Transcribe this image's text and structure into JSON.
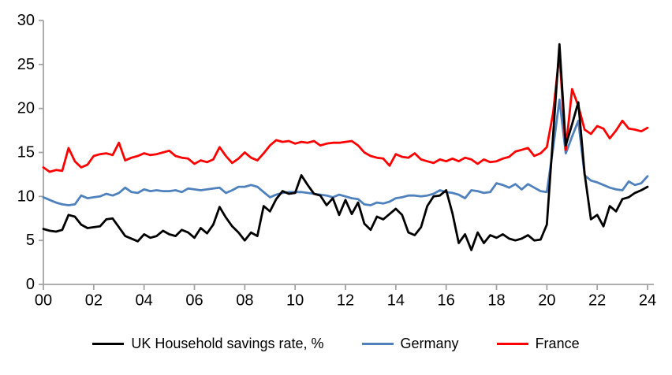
{
  "chart_data": {
    "type": "line",
    "title": "",
    "xlabel": "",
    "ylabel": "",
    "grid": false,
    "legend_position": "bottom",
    "ylim": [
      0,
      30
    ],
    "y_ticks": [
      0,
      5,
      10,
      15,
      20,
      25,
      30
    ],
    "x_axis": {
      "tick_labels": [
        "00",
        "02",
        "04",
        "06",
        "08",
        "10",
        "12",
        "14",
        "16",
        "18",
        "20",
        "22",
        "24"
      ],
      "points_per_tick": 8,
      "frequency": "quarterly"
    },
    "axis_color": "#A3A3A3",
    "tick_label_color": "#000000",
    "series": [
      {
        "name": "UK Household savings rate, %",
        "color": "#000000",
        "values": [
          6.3,
          6.1,
          6.0,
          6.2,
          7.9,
          7.7,
          6.8,
          6.4,
          6.5,
          6.6,
          7.4,
          7.5,
          6.5,
          5.5,
          5.2,
          4.9,
          5.7,
          5.3,
          5.5,
          6.1,
          5.7,
          5.5,
          6.2,
          5.9,
          5.3,
          6.4,
          5.8,
          6.8,
          8.8,
          7.6,
          6.6,
          5.9,
          5.0,
          5.9,
          5.5,
          8.9,
          8.3,
          9.7,
          10.6,
          10.3,
          10.4,
          12.4,
          11.3,
          10.3,
          10.1,
          9.0,
          9.8,
          7.9,
          9.6,
          8.0,
          9.3,
          6.9,
          6.2,
          7.7,
          7.4,
          8.0,
          8.6,
          7.9,
          5.9,
          5.6,
          6.5,
          8.9,
          10.0,
          10.1,
          10.7,
          8.1,
          4.7,
          5.7,
          3.9,
          5.9,
          4.7,
          5.6,
          5.3,
          5.7,
          5.2,
          5.0,
          5.2,
          5.6,
          5.0,
          5.1,
          6.8,
          17.0,
          27.3,
          15.8,
          18.2,
          20.7,
          12.6,
          7.4,
          7.9,
          6.6,
          8.9,
          8.3,
          9.7,
          9.9,
          10.4,
          10.7,
          11.1
        ]
      },
      {
        "name": "Germany",
        "color": "#4F81BD",
        "values": [
          9.9,
          9.6,
          9.3,
          9.1,
          9.0,
          9.1,
          10.1,
          9.8,
          9.9,
          10.0,
          10.3,
          10.1,
          10.4,
          11.0,
          10.5,
          10.4,
          10.8,
          10.6,
          10.7,
          10.6,
          10.6,
          10.7,
          10.5,
          10.9,
          10.8,
          10.7,
          10.8,
          10.9,
          11.0,
          10.4,
          10.7,
          11.1,
          11.1,
          11.3,
          11.1,
          10.5,
          9.9,
          10.2,
          10.4,
          10.5,
          10.5,
          10.5,
          10.4,
          10.3,
          10.2,
          10.1,
          9.9,
          10.2,
          10.0,
          9.8,
          9.7,
          9.1,
          9.0,
          9.3,
          9.2,
          9.4,
          9.8,
          9.9,
          10.1,
          10.1,
          10.0,
          10.1,
          10.3,
          10.7,
          10.5,
          10.4,
          10.2,
          9.8,
          10.7,
          10.6,
          10.4,
          10.5,
          11.5,
          11.3,
          11.0,
          11.4,
          10.8,
          11.4,
          11.0,
          10.6,
          10.5,
          15.5,
          21.0,
          14.9,
          16.8,
          18.6,
          12.4,
          11.8,
          11.6,
          11.3,
          11.0,
          10.8,
          10.7,
          11.7,
          11.3,
          11.5,
          12.3
        ]
      },
      {
        "name": "France",
        "color": "#FF0000",
        "values": [
          13.3,
          12.8,
          13.0,
          12.9,
          15.5,
          14.0,
          13.3,
          13.6,
          14.6,
          14.8,
          14.9,
          14.7,
          16.1,
          14.1,
          14.4,
          14.6,
          14.9,
          14.7,
          14.8,
          15.0,
          15.2,
          14.6,
          14.4,
          14.3,
          13.7,
          14.1,
          13.9,
          14.2,
          15.6,
          14.6,
          13.8,
          14.3,
          15.0,
          14.4,
          14.1,
          14.9,
          15.8,
          16.4,
          16.2,
          16.3,
          16.0,
          16.2,
          16.1,
          16.3,
          15.8,
          16.0,
          16.1,
          16.1,
          16.2,
          16.3,
          15.8,
          15.0,
          14.6,
          14.4,
          14.3,
          13.5,
          14.8,
          14.5,
          14.4,
          14.9,
          14.2,
          14.0,
          13.8,
          14.2,
          14.0,
          14.3,
          14.0,
          14.4,
          14.2,
          13.7,
          14.2,
          13.9,
          14.0,
          14.3,
          14.5,
          15.1,
          15.3,
          15.5,
          14.6,
          14.9,
          15.6,
          19.5,
          26.2,
          15.3,
          22.2,
          20.3,
          17.6,
          17.1,
          18.0,
          17.7,
          16.6,
          17.5,
          18.6,
          17.7,
          17.6,
          17.4,
          17.8
        ]
      }
    ]
  },
  "legend": {
    "uk_label": "UK Household savings rate, %",
    "germany_label": "Germany",
    "france_label": "France"
  }
}
